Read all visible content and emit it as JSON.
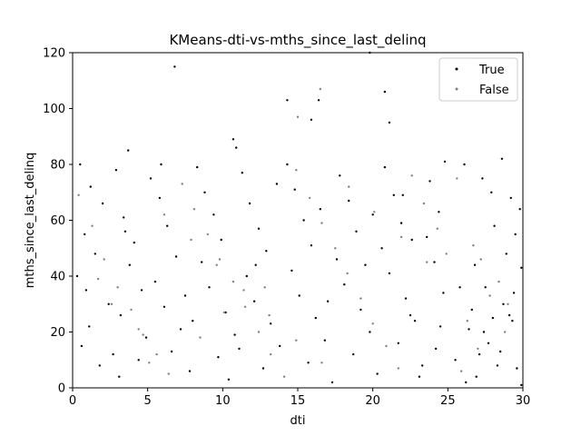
{
  "chart_data": {
    "type": "scatter",
    "title": "KMeans-dti-vs-mths_since_last_delinq",
    "xlabel": "dti",
    "ylabel": "mths_since_last_delinq",
    "xlim": [
      0,
      30
    ],
    "ylim": [
      0,
      120
    ],
    "xticks": [
      0,
      5,
      10,
      15,
      20,
      25,
      30
    ],
    "yticks": [
      0,
      20,
      40,
      60,
      80,
      100,
      120
    ],
    "grid": false,
    "legend_position": "top-right",
    "series": [
      {
        "name": "True",
        "color": "#000000",
        "points": [
          [
            6.8,
            115
          ],
          [
            14.3,
            103
          ],
          [
            16.4,
            103
          ],
          [
            20.8,
            106
          ],
          [
            10.7,
            89
          ],
          [
            10.9,
            86
          ],
          [
            15.9,
            96
          ],
          [
            21.1,
            95
          ],
          [
            3.7,
            85
          ],
          [
            19.8,
            120
          ],
          [
            0.5,
            80
          ],
          [
            1.2,
            72
          ],
          [
            2.0,
            66
          ],
          [
            0.8,
            55
          ],
          [
            1.5,
            48
          ],
          [
            0.3,
            40
          ],
          [
            2.4,
            30
          ],
          [
            1.1,
            22
          ],
          [
            0.6,
            15
          ],
          [
            1.8,
            8
          ],
          [
            2.9,
            78
          ],
          [
            3.4,
            61
          ],
          [
            4.1,
            52
          ],
          [
            3.8,
            44
          ],
          [
            4.6,
            35
          ],
          [
            3.2,
            26
          ],
          [
            4.9,
            18
          ],
          [
            4.4,
            10
          ],
          [
            3.1,
            4
          ],
          [
            5.2,
            75
          ],
          [
            5.8,
            68
          ],
          [
            6.3,
            58
          ],
          [
            6.9,
            47
          ],
          [
            5.5,
            38
          ],
          [
            6.1,
            29
          ],
          [
            7.2,
            21
          ],
          [
            6.6,
            13
          ],
          [
            7.8,
            6
          ],
          [
            8.3,
            79
          ],
          [
            8.8,
            70
          ],
          [
            9.4,
            62
          ],
          [
            9.9,
            53
          ],
          [
            8.6,
            45
          ],
          [
            9.1,
            36
          ],
          [
            10.2,
            27
          ],
          [
            10.8,
            19
          ],
          [
            9.7,
            11
          ],
          [
            10.4,
            3
          ],
          [
            11.3,
            77
          ],
          [
            11.8,
            66
          ],
          [
            12.4,
            57
          ],
          [
            12.9,
            49
          ],
          [
            11.6,
            40
          ],
          [
            12.1,
            31
          ],
          [
            13.2,
            23
          ],
          [
            13.8,
            15
          ],
          [
            12.7,
            7
          ],
          [
            14.3,
            80
          ],
          [
            14.8,
            71
          ],
          [
            15.4,
            60
          ],
          [
            15.9,
            51
          ],
          [
            14.6,
            42
          ],
          [
            15.1,
            33
          ],
          [
            16.2,
            25
          ],
          [
            16.8,
            17
          ],
          [
            15.7,
            9
          ],
          [
            17.3,
            2
          ],
          [
            17.8,
            76
          ],
          [
            18.4,
            67
          ],
          [
            18.9,
            56
          ],
          [
            17.6,
            46
          ],
          [
            18.1,
            37
          ],
          [
            19.2,
            28
          ],
          [
            19.8,
            20
          ],
          [
            18.7,
            12
          ],
          [
            20.3,
            5
          ],
          [
            20.8,
            79
          ],
          [
            21.4,
            69
          ],
          [
            21.9,
            59
          ],
          [
            20.6,
            50
          ],
          [
            21.1,
            41
          ],
          [
            22.2,
            32
          ],
          [
            22.8,
            24
          ],
          [
            21.7,
            16
          ],
          [
            23.3,
            8
          ],
          [
            23.8,
            74
          ],
          [
            24.4,
            63
          ],
          [
            23.6,
            54
          ],
          [
            24.1,
            45
          ],
          [
            24.7,
            34
          ],
          [
            22.5,
            26
          ],
          [
            24.2,
            14
          ],
          [
            23.1,
            4
          ],
          [
            24.8,
            81
          ],
          [
            0.9,
            35
          ],
          [
            2.7,
            12
          ],
          [
            5.9,
            80
          ],
          [
            7.5,
            33
          ],
          [
            11.1,
            14
          ],
          [
            13.6,
            73
          ],
          [
            16.5,
            64
          ],
          [
            19.5,
            44
          ],
          [
            22.0,
            69
          ],
          [
            24.5,
            22
          ],
          [
            3.5,
            56
          ],
          [
            8.0,
            24
          ],
          [
            12.2,
            44
          ],
          [
            17.0,
            31
          ],
          [
            20.0,
            62
          ],
          [
            22.6,
            53
          ],
          [
            26.1,
            80
          ],
          [
            27.3,
            75
          ],
          [
            27.9,
            70
          ],
          [
            28.6,
            82
          ],
          [
            29.2,
            68
          ],
          [
            29.8,
            64
          ],
          [
            28.1,
            58
          ],
          [
            29.5,
            55
          ],
          [
            26.8,
            44
          ],
          [
            28.9,
            48
          ],
          [
            29.9,
            43
          ],
          [
            27.5,
            36
          ],
          [
            28.7,
            30
          ],
          [
            29.3,
            24
          ],
          [
            26.4,
            21
          ],
          [
            27.1,
            12
          ],
          [
            28.3,
            8
          ],
          [
            29.6,
            7
          ],
          [
            26.9,
            4
          ],
          [
            27.7,
            16
          ],
          [
            28.0,
            25
          ],
          [
            29.1,
            26
          ],
          [
            25.8,
            36
          ],
          [
            26.6,
            28
          ],
          [
            27.4,
            20
          ],
          [
            29.9,
            1
          ],
          [
            25.5,
            10
          ],
          [
            26.2,
            2
          ],
          [
            28.5,
            13
          ],
          [
            29.4,
            34
          ]
        ]
      },
      {
        "name": "False",
        "color": "#808080",
        "points": [
          [
            16.5,
            107
          ],
          [
            15.0,
            97
          ],
          [
            0.4,
            69
          ],
          [
            1.3,
            58
          ],
          [
            2.1,
            46
          ],
          [
            3.0,
            36
          ],
          [
            3.9,
            28
          ],
          [
            4.7,
            19
          ],
          [
            5.6,
            12
          ],
          [
            6.4,
            5
          ],
          [
            7.3,
            73
          ],
          [
            8.1,
            64
          ],
          [
            9.0,
            55
          ],
          [
            9.8,
            46
          ],
          [
            10.7,
            38
          ],
          [
            11.5,
            29
          ],
          [
            12.4,
            20
          ],
          [
            13.2,
            12
          ],
          [
            14.1,
            4
          ],
          [
            14.9,
            78
          ],
          [
            15.8,
            68
          ],
          [
            16.6,
            59
          ],
          [
            17.5,
            50
          ],
          [
            18.3,
            41
          ],
          [
            19.2,
            32
          ],
          [
            20.0,
            23
          ],
          [
            20.9,
            15
          ],
          [
            21.7,
            7
          ],
          [
            22.6,
            76
          ],
          [
            23.4,
            66
          ],
          [
            24.3,
            57
          ],
          [
            24.9,
            48
          ],
          [
            1.7,
            39
          ],
          [
            2.6,
            30
          ],
          [
            4.4,
            21
          ],
          [
            6.1,
            62
          ],
          [
            7.9,
            53
          ],
          [
            9.6,
            44
          ],
          [
            11.4,
            35
          ],
          [
            13.1,
            26
          ],
          [
            14.9,
            17
          ],
          [
            16.6,
            9
          ],
          [
            18.4,
            72
          ],
          [
            20.1,
            63
          ],
          [
            21.9,
            54
          ],
          [
            23.6,
            45
          ],
          [
            12.8,
            36
          ],
          [
            10.1,
            27
          ],
          [
            8.5,
            18
          ],
          [
            5.1,
            9
          ],
          [
            25.6,
            75
          ],
          [
            26.7,
            51
          ],
          [
            27.2,
            46
          ],
          [
            28.4,
            38
          ],
          [
            27.8,
            33
          ],
          [
            26.3,
            24
          ],
          [
            28.8,
            20
          ],
          [
            27.0,
            14
          ],
          [
            25.9,
            6
          ],
          [
            29.0,
            30
          ]
        ]
      }
    ]
  }
}
